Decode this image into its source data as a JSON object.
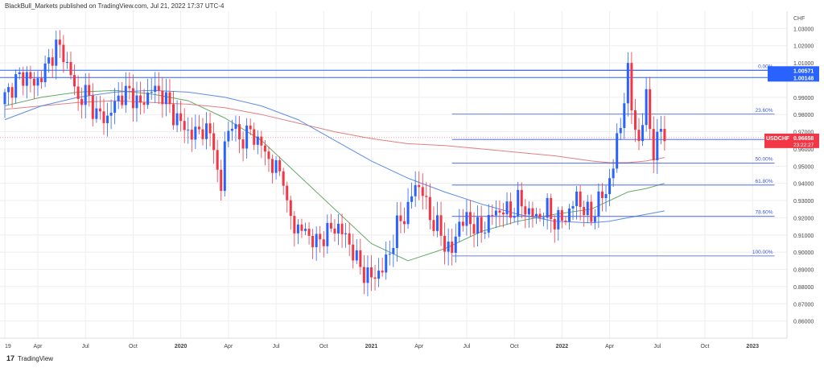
{
  "header": {
    "text": "BlackBull_Markets published on TradingView.com, Jul 21, 2022 17:37 UTC-4"
  },
  "footer": {
    "logo_glyph": "17",
    "brand": "TradingView"
  },
  "colors": {
    "up": "#2962ff",
    "down": "#f23645",
    "ma_green": "#66a96b",
    "ma_red": "#e08080",
    "ma_blue": "#5b8de8",
    "fib": "#3a57d8",
    "level": "#2962ff",
    "grid": "#eeeeee"
  },
  "chart_data": {
    "type": "candlestick",
    "symbol": "USDCHF",
    "currency": "CHF",
    "ylim": [
      0.85,
      1.04
    ],
    "y_ticks": [
      "1.03000",
      "1.02000",
      "1.01000",
      "0.99000",
      "0.98000",
      "0.97000",
      "0.96000",
      "0.95000",
      "0.94000",
      "0.93000",
      "0.92000",
      "0.91000",
      "0.90000",
      "0.89000",
      "0.88000",
      "0.87000",
      "0.86000"
    ],
    "x_ticks": [
      {
        "label": "19",
        "week": 0
      },
      {
        "label": "Apr",
        "week": 9
      },
      {
        "label": "Jul",
        "week": 22
      },
      {
        "label": "Oct",
        "week": 35
      },
      {
        "label": "2020",
        "week": 48
      },
      {
        "label": "Apr",
        "week": 61
      },
      {
        "label": "Jul",
        "week": 74
      },
      {
        "label": "Oct",
        "week": 87
      },
      {
        "label": "2021",
        "week": 100
      },
      {
        "label": "Apr",
        "week": 113
      },
      {
        "label": "Jul",
        "week": 126
      },
      {
        "label": "Oct",
        "week": 139
      },
      {
        "label": "2022",
        "week": 152
      },
      {
        "label": "Apr",
        "week": 165
      },
      {
        "label": "Jul",
        "week": 178
      },
      {
        "label": "Oct",
        "week": 191
      },
      {
        "label": "2023",
        "week": 204
      }
    ],
    "horizontal_levels": [
      {
        "value": 1.00571,
        "label": "1.00571"
      },
      {
        "value": 1.00148,
        "label": "1.00148"
      }
    ],
    "fibonacci": {
      "start_week": 122,
      "end_week": 210,
      "levels": [
        {
          "ratio": "0.00%",
          "value": 1.0057
        },
        {
          "ratio": "23.60%",
          "value": 0.9802
        },
        {
          "ratio": "50.00%",
          "value": 0.9517
        },
        {
          "ratio": "61.80%",
          "value": 0.939
        },
        {
          "ratio": "78.60%",
          "value": 0.9208
        },
        {
          "ratio": "100.00%",
          "value": 0.8978
        }
      ],
      "extra_line": {
        "value": 0.9655,
        "start_week": 122
      }
    },
    "last_price": {
      "value": 0.96658,
      "label": "0.96658",
      "countdown": "23:22:27"
    },
    "weeks": 177,
    "key_closes": [
      [
        0,
        0.99
      ],
      [
        3,
        1.0
      ],
      [
        6,
        1.003
      ],
      [
        8,
        0.997
      ],
      [
        11,
        1.006
      ],
      [
        14,
        1.02
      ],
      [
        16,
        1.015
      ],
      [
        18,
        1.003
      ],
      [
        20,
        0.988
      ],
      [
        22,
        0.993
      ],
      [
        25,
        0.98
      ],
      [
        28,
        0.978
      ],
      [
        31,
        0.99
      ],
      [
        34,
        0.993
      ],
      [
        37,
        0.985
      ],
      [
        40,
        0.995
      ],
      [
        43,
        0.992
      ],
      [
        46,
        0.98
      ],
      [
        48,
        0.975
      ],
      [
        51,
        0.968
      ],
      [
        54,
        0.972
      ],
      [
        57,
        0.965
      ],
      [
        58,
        0.945
      ],
      [
        59,
        0.935
      ],
      [
        60,
        0.965
      ],
      [
        62,
        0.975
      ],
      [
        64,
        0.965
      ],
      [
        67,
        0.97
      ],
      [
        70,
        0.962
      ],
      [
        73,
        0.95
      ],
      [
        76,
        0.945
      ],
      [
        77,
        0.925
      ],
      [
        79,
        0.915
      ],
      [
        82,
        0.912
      ],
      [
        85,
        0.905
      ],
      [
        88,
        0.912
      ],
      [
        91,
        0.915
      ],
      [
        94,
        0.905
      ],
      [
        96,
        0.895
      ],
      [
        98,
        0.888
      ],
      [
        100,
        0.885
      ],
      [
        103,
        0.89
      ],
      [
        105,
        0.9
      ],
      [
        107,
        0.915
      ],
      [
        110,
        0.925
      ],
      [
        112,
        0.94
      ],
      [
        114,
        0.935
      ],
      [
        116,
        0.92
      ],
      [
        118,
        0.915
      ],
      [
        120,
        0.905
      ],
      [
        122,
        0.9
      ],
      [
        124,
        0.918
      ],
      [
        127,
        0.918
      ],
      [
        130,
        0.912
      ],
      [
        133,
        0.922
      ],
      [
        136,
        0.925
      ],
      [
        138,
        0.922
      ],
      [
        140,
        0.93
      ],
      [
        142,
        0.925
      ],
      [
        145,
        0.92
      ],
      [
        148,
        0.925
      ],
      [
        150,
        0.918
      ],
      [
        153,
        0.92
      ],
      [
        156,
        0.932
      ],
      [
        158,
        0.925
      ],
      [
        160,
        0.92
      ],
      [
        162,
        0.93
      ],
      [
        164,
        0.935
      ],
      [
        166,
        0.95
      ],
      [
        167,
        0.965
      ],
      [
        168,
        0.975
      ],
      [
        169,
        0.99
      ],
      [
        170,
        1.003
      ],
      [
        171,
        0.985
      ],
      [
        172,
        0.975
      ],
      [
        173,
        0.96
      ],
      [
        174,
        0.975
      ],
      [
        175,
        0.995
      ],
      [
        176,
        0.972
      ],
      [
        177,
        0.955
      ],
      [
        178,
        0.965
      ],
      [
        179,
        0.975
      ],
      [
        180,
        0.968
      ]
    ],
    "moving_averages": [
      {
        "name": "green",
        "points": [
          [
            0,
            0.985
          ],
          [
            10,
            0.99
          ],
          [
            20,
            0.993
          ],
          [
            30,
            0.994
          ],
          [
            40,
            0.992
          ],
          [
            50,
            0.988
          ],
          [
            60,
            0.978
          ],
          [
            70,
            0.965
          ],
          [
            80,
            0.945
          ],
          [
            90,
            0.925
          ],
          [
            100,
            0.905
          ],
          [
            110,
            0.895
          ],
          [
            120,
            0.902
          ],
          [
            130,
            0.912
          ],
          [
            140,
            0.918
          ],
          [
            150,
            0.922
          ],
          [
            160,
            0.925
          ],
          [
            165,
            0.93
          ],
          [
            170,
            0.935
          ],
          [
            175,
            0.937
          ],
          [
            180,
            0.94
          ]
        ]
      },
      {
        "name": "red",
        "points": [
          [
            0,
            0.983
          ],
          [
            10,
            0.985
          ],
          [
            20,
            0.987
          ],
          [
            30,
            0.988
          ],
          [
            40,
            0.987
          ],
          [
            50,
            0.986
          ],
          [
            60,
            0.984
          ],
          [
            70,
            0.98
          ],
          [
            80,
            0.975
          ],
          [
            90,
            0.97
          ],
          [
            100,
            0.966
          ],
          [
            110,
            0.963
          ],
          [
            120,
            0.962
          ],
          [
            130,
            0.96
          ],
          [
            140,
            0.958
          ],
          [
            150,
            0.956
          ],
          [
            160,
            0.953
          ],
          [
            165,
            0.952
          ],
          [
            170,
            0.952
          ],
          [
            175,
            0.953
          ],
          [
            180,
            0.955
          ]
        ]
      },
      {
        "name": "blue",
        "points": [
          [
            0,
            0.977
          ],
          [
            10,
            0.985
          ],
          [
            20,
            0.99
          ],
          [
            30,
            0.993
          ],
          [
            40,
            0.994
          ],
          [
            50,
            0.993
          ],
          [
            60,
            0.99
          ],
          [
            70,
            0.985
          ],
          [
            80,
            0.977
          ],
          [
            90,
            0.965
          ],
          [
            100,
            0.953
          ],
          [
            110,
            0.943
          ],
          [
            120,
            0.935
          ],
          [
            130,
            0.928
          ],
          [
            140,
            0.922
          ],
          [
            150,
            0.918
          ],
          [
            160,
            0.917
          ],
          [
            165,
            0.918
          ],
          [
            170,
            0.92
          ],
          [
            175,
            0.922
          ],
          [
            180,
            0.924
          ]
        ]
      }
    ]
  }
}
